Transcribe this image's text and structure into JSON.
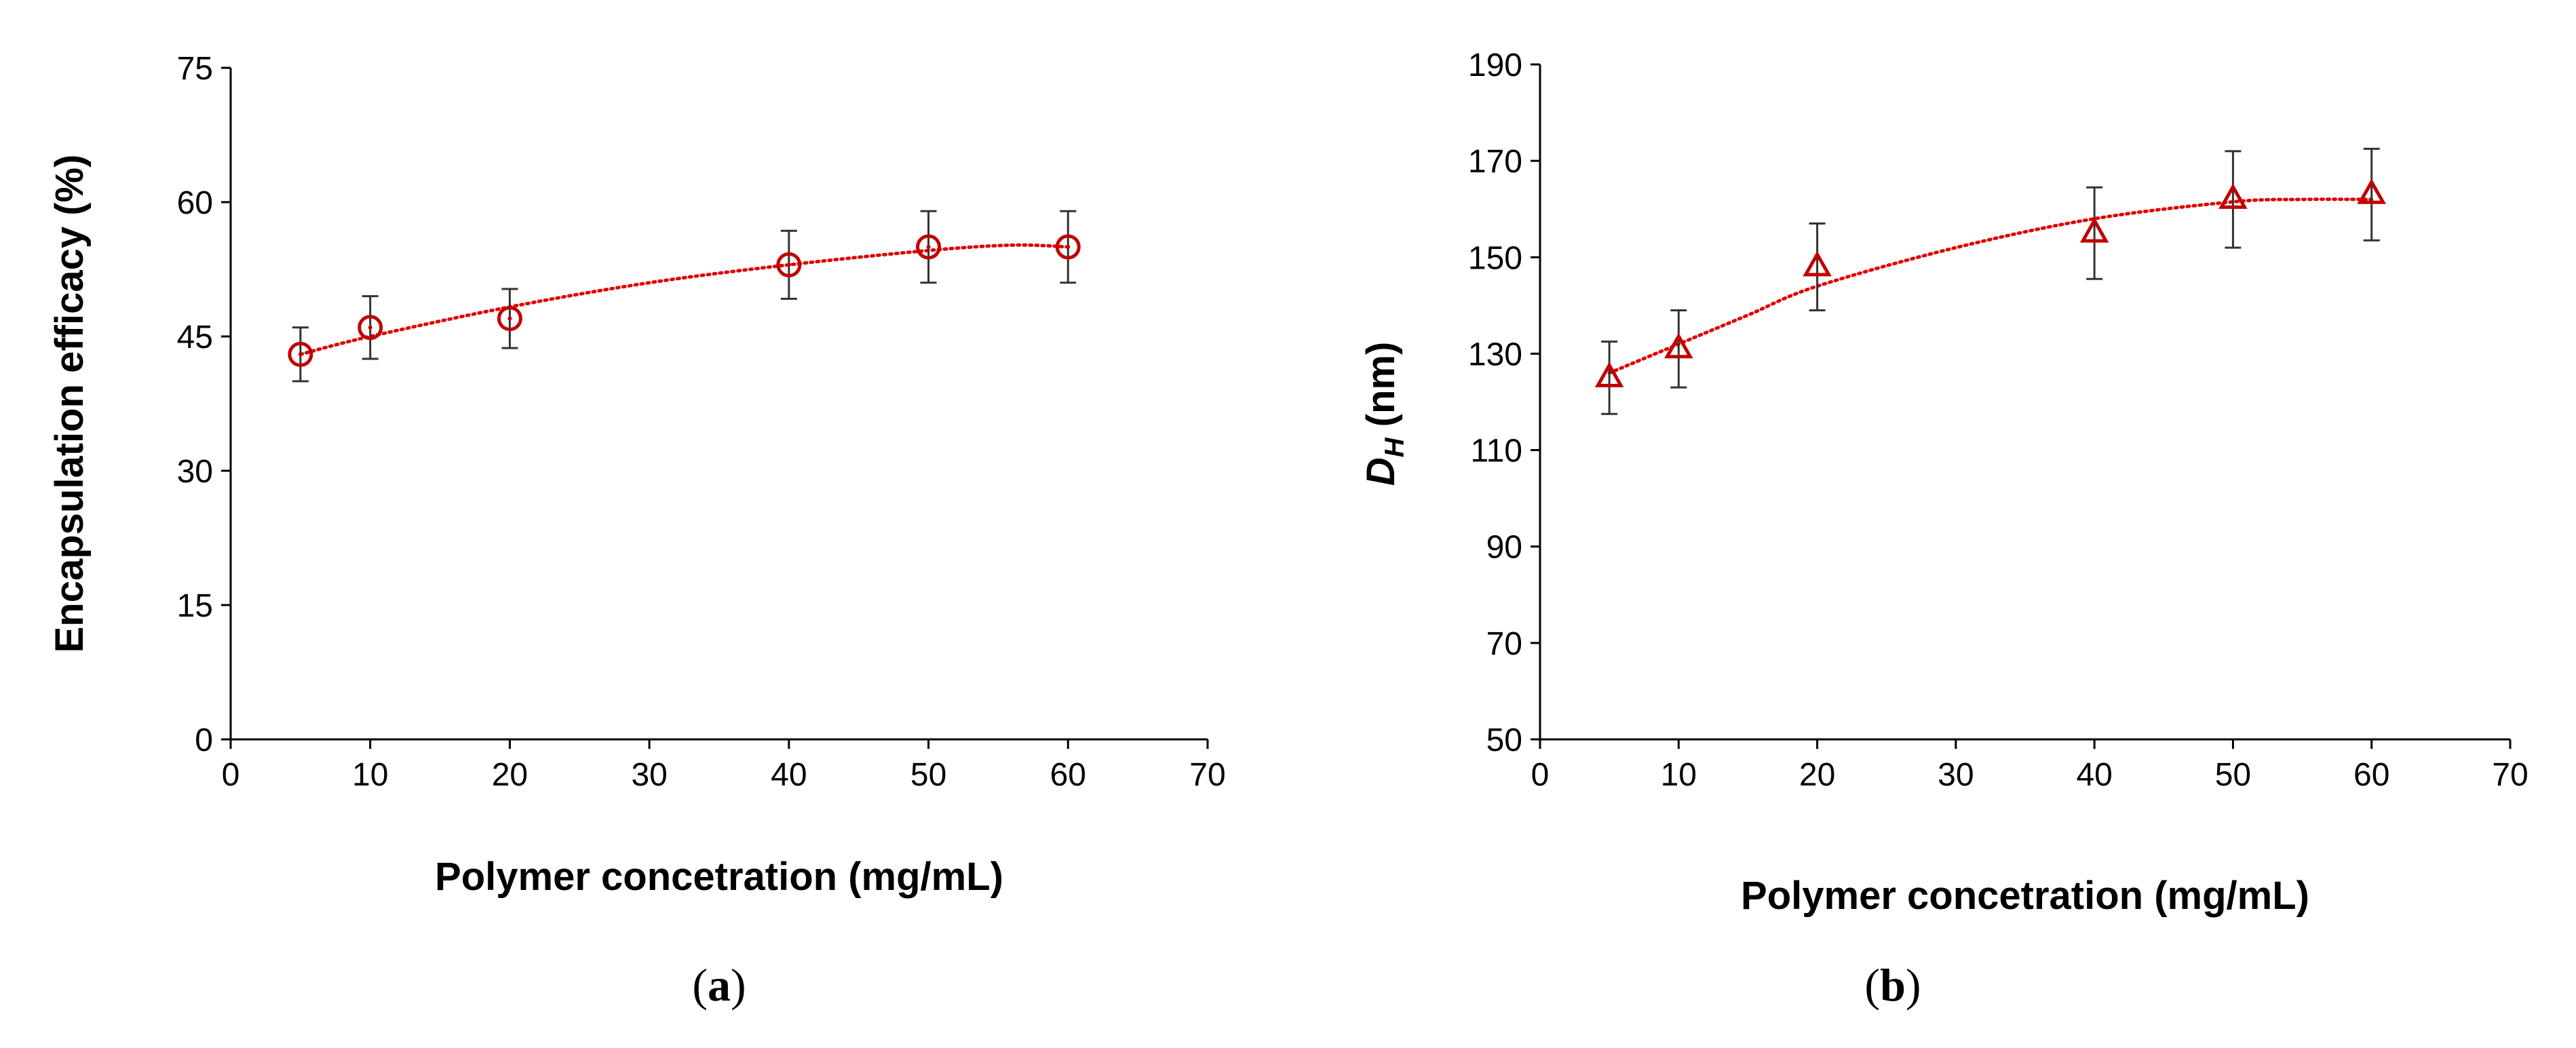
{
  "chart_data": [
    {
      "type": "scatter",
      "panel_label": "a",
      "xlabel": "Polymer concetration (mg/mL)",
      "ylabel": "Encapsulation efficacy (%)",
      "xlim": [
        0,
        70
      ],
      "ylim": [
        0,
        75
      ],
      "xticks": [
        0,
        10,
        20,
        30,
        40,
        50,
        60,
        70
      ],
      "yticks": [
        0,
        15,
        30,
        45,
        60,
        75
      ],
      "marker": "circle",
      "series": [
        {
          "name": "Encapsulation efficacy",
          "x": [
            5,
            10,
            20,
            40,
            50,
            60
          ],
          "values": [
            43,
            46,
            47,
            53,
            55,
            55
          ],
          "error": [
            3,
            3.5,
            3.3,
            3.8,
            4,
            4
          ]
        }
      ],
      "trendline": {
        "x": [
          5,
          10,
          20,
          30,
          40,
          50,
          56,
          60
        ],
        "y": [
          43,
          45,
          48.3,
          51,
          53,
          54.6,
          55.2,
          55
        ]
      }
    },
    {
      "type": "scatter",
      "panel_label": "b",
      "xlabel": "Polymer concetration (mg/mL)",
      "ylabel_main": "D",
      "ylabel_sub": "H",
      "ylabel_unit": " (nm)",
      "xlim": [
        0,
        70
      ],
      "ylim": [
        50,
        190
      ],
      "xticks": [
        0,
        10,
        20,
        30,
        40,
        50,
        60,
        70
      ],
      "yticks": [
        50,
        70,
        90,
        110,
        130,
        150,
        170,
        190
      ],
      "marker": "triangle",
      "series": [
        {
          "name": "D_H",
          "x": [
            5,
            10,
            20,
            40,
            50,
            60
          ],
          "values": [
            125,
            131,
            148,
            155,
            162,
            163
          ],
          "error": [
            7.5,
            8,
            9,
            9.5,
            10,
            9.5
          ]
        }
      ],
      "trendline": {
        "x": [
          5,
          10,
          15,
          20,
          30,
          40,
          50,
          55,
          60
        ],
        "y": [
          126,
          132,
          138,
          144,
          152,
          158,
          161.5,
          162,
          162
        ]
      }
    }
  ]
}
